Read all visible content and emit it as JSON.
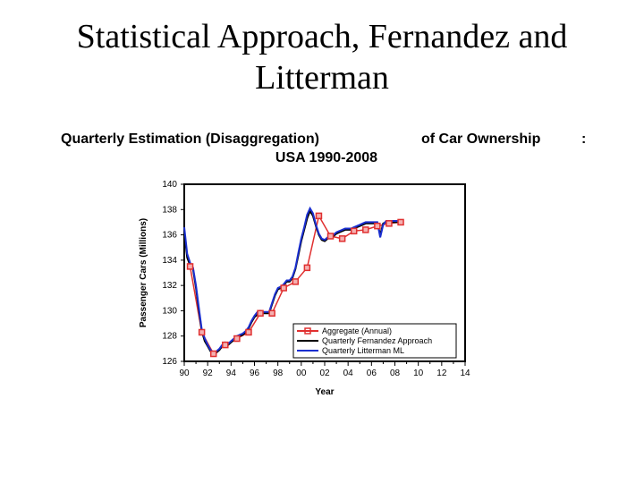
{
  "slide": {
    "title_line1": "Statistical Approach, Fernandez and",
    "title_line2": "Litterman"
  },
  "chart_data": {
    "type": "line",
    "title_part1": "Quarterly Estimation (Disaggregation)",
    "title_part2": "of Car Ownership",
    "title_colon": ":",
    "subtitle": "USA 1990-2008",
    "xlabel": "Year",
    "ylabel": "Passenger Cars (Millions)",
    "xlim": [
      1990,
      2014
    ],
    "ylim": [
      126,
      140
    ],
    "x_ticks": [
      "90",
      "92",
      "94",
      "96",
      "98",
      "00",
      "02",
      "04",
      "06",
      "08",
      "10",
      "12",
      "14"
    ],
    "y_ticks": [
      "126",
      "128",
      "130",
      "132",
      "134",
      "136",
      "138",
      "140"
    ],
    "legend": [
      "Aggregate (Annual)",
      "Quarterly Fernandez Approach",
      "Quarterly Litterman ML"
    ],
    "colors": {
      "aggregate": "#e03030",
      "fernandez": "#000000",
      "litterman": "#1a2fd0"
    },
    "series": [
      {
        "name": "Aggregate (Annual)",
        "x": [
          1990.5,
          1991.5,
          1992.5,
          1993.5,
          1994.5,
          1995.5,
          1996.5,
          1997.5,
          1998.5,
          1999.5,
          2000.5,
          2001.5,
          2002.5,
          2003.5,
          2004.5,
          2005.5,
          2006.5,
          2007.5,
          2008.5
        ],
        "values": [
          133.5,
          128.3,
          126.6,
          127.3,
          127.8,
          128.3,
          129.8,
          129.8,
          131.8,
          132.3,
          133.4,
          137.5,
          135.9,
          135.7,
          136.3,
          136.4,
          136.7,
          136.9,
          137.0
        ]
      },
      {
        "name": "Quarterly Fernandez Approach",
        "x": [
          1990.0,
          1990.25,
          1990.5,
          1990.75,
          1991.0,
          1991.25,
          1991.5,
          1991.75,
          1992.0,
          1992.25,
          1992.5,
          1992.75,
          1993.0,
          1993.25,
          1993.5,
          1993.75,
          1994.0,
          1994.25,
          1994.5,
          1994.75,
          1995.0,
          1995.25,
          1995.5,
          1995.75,
          1996.0,
          1996.25,
          1996.5,
          1996.75,
          1997.0,
          1997.25,
          1997.5,
          1997.75,
          1998.0,
          1998.25,
          1998.5,
          1998.75,
          1999.0,
          1999.25,
          1999.5,
          1999.75,
          2000.0,
          2000.25,
          2000.5,
          2000.75,
          2001.0,
          2001.25,
          2001.5,
          2001.75,
          2002.0,
          2002.25,
          2002.5,
          2002.75,
          2003.0,
          2003.25,
          2003.5,
          2003.75,
          2004.0,
          2004.25,
          2004.5,
          2004.75,
          2005.0,
          2005.25,
          2005.5,
          2005.75,
          2006.0,
          2006.25,
          2006.5,
          2006.75,
          2007.0,
          2007.25,
          2007.5,
          2007.75,
          2008.0,
          2008.25,
          2008.5
        ],
        "values": [
          136.3,
          134.2,
          133.6,
          133.3,
          131.8,
          130.0,
          128.4,
          127.6,
          127.2,
          126.8,
          126.6,
          126.7,
          126.9,
          127.2,
          127.3,
          127.3,
          127.5,
          127.7,
          127.9,
          128.0,
          128.1,
          128.3,
          128.6,
          129.1,
          129.5,
          129.7,
          129.8,
          129.8,
          129.8,
          129.8,
          130.5,
          131.2,
          131.7,
          131.8,
          132.0,
          132.3,
          132.3,
          132.6,
          133.3,
          134.4,
          135.5,
          136.4,
          137.3,
          137.9,
          137.5,
          136.7,
          136.0,
          135.6,
          135.5,
          135.7,
          135.8,
          135.9,
          136.1,
          136.2,
          136.3,
          136.4,
          136.4,
          136.4,
          136.5,
          136.6,
          136.7,
          136.8,
          136.9,
          136.9,
          136.9,
          136.9,
          136.9,
          136.0,
          136.9,
          137.0,
          137.0,
          137.0,
          137.0,
          137.0,
          137.0
        ]
      },
      {
        "name": "Quarterly Litterman ML",
        "x": [
          1990.0,
          1990.25,
          1990.5,
          1990.75,
          1991.0,
          1991.25,
          1991.5,
          1991.75,
          1992.0,
          1992.25,
          1992.5,
          1992.75,
          1993.0,
          1993.25,
          1993.5,
          1993.75,
          1994.0,
          1994.25,
          1994.5,
          1994.75,
          1995.0,
          1995.25,
          1995.5,
          1995.75,
          1996.0,
          1996.25,
          1996.5,
          1996.75,
          1997.0,
          1997.25,
          1997.5,
          1997.75,
          1998.0,
          1998.25,
          1998.5,
          1998.75,
          1999.0,
          1999.25,
          1999.5,
          1999.75,
          2000.0,
          2000.25,
          2000.5,
          2000.75,
          2001.0,
          2001.25,
          2001.5,
          2001.75,
          2002.0,
          2002.25,
          2002.5,
          2002.75,
          2003.0,
          2003.25,
          2003.5,
          2003.75,
          2004.0,
          2004.25,
          2004.5,
          2004.75,
          2005.0,
          2005.25,
          2005.5,
          2005.75,
          2006.0,
          2006.25,
          2006.5,
          2006.75,
          2007.0,
          2007.25,
          2007.5,
          2007.75,
          2008.0,
          2008.25,
          2008.5
        ],
        "values": [
          136.6,
          134.5,
          133.8,
          133.4,
          132.0,
          130.2,
          128.5,
          127.8,
          127.3,
          126.9,
          126.7,
          126.8,
          127.0,
          127.3,
          127.5,
          127.4,
          127.6,
          127.8,
          128.0,
          128.1,
          128.2,
          128.4,
          128.7,
          129.2,
          129.6,
          129.9,
          130.0,
          129.9,
          129.9,
          129.9,
          130.6,
          131.3,
          131.8,
          131.9,
          132.1,
          132.4,
          132.4,
          132.7,
          133.4,
          134.6,
          135.7,
          136.6,
          137.6,
          138.1,
          137.7,
          136.8,
          136.1,
          135.7,
          135.6,
          135.8,
          135.9,
          136.0,
          136.2,
          136.3,
          136.4,
          136.5,
          136.5,
          136.5,
          136.6,
          136.7,
          136.8,
          136.9,
          137.0,
          137.0,
          137.0,
          137.0,
          137.0,
          135.8,
          136.8,
          137.1,
          137.1,
          137.1,
          137.1,
          137.1,
          137.1
        ]
      }
    ]
  }
}
